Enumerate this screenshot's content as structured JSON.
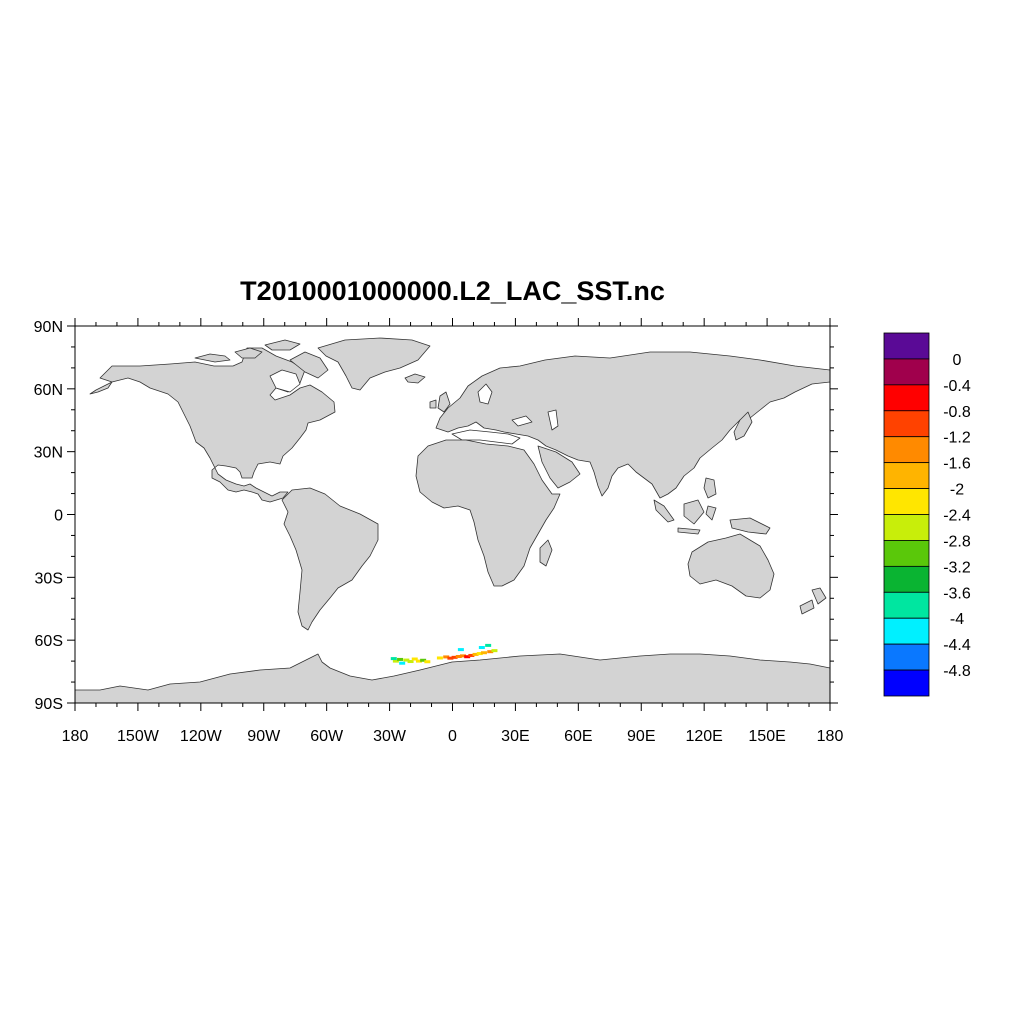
{
  "title": "T2010001000000.L2_LAC_SST.nc",
  "map": {
    "projection": "equirectangular",
    "lon_range": [
      -180,
      180
    ],
    "lat_range": [
      -90,
      90
    ],
    "land_color": "#d3d3d3",
    "coast_color": "#333333",
    "y_tick_labels": [
      {
        "lat": 90,
        "text": "90N"
      },
      {
        "lat": 60,
        "text": "60N"
      },
      {
        "lat": 30,
        "text": "30N"
      },
      {
        "lat": 0,
        "text": "0"
      },
      {
        "lat": -30,
        "text": "30S"
      },
      {
        "lat": -60,
        "text": "60S"
      },
      {
        "lat": -90,
        "text": "90S"
      }
    ],
    "x_tick_labels": [
      {
        "lon": -180,
        "text": "180"
      },
      {
        "lon": -150,
        "text": "150W"
      },
      {
        "lon": -120,
        "text": "120W"
      },
      {
        "lon": -90,
        "text": "90W"
      },
      {
        "lon": -60,
        "text": "60W"
      },
      {
        "lon": -30,
        "text": "30W"
      },
      {
        "lon": 0,
        "text": "0"
      },
      {
        "lon": 30,
        "text": "30E"
      },
      {
        "lon": 60,
        "text": "60E"
      },
      {
        "lon": 90,
        "text": "90E"
      },
      {
        "lon": 120,
        "text": "120E"
      },
      {
        "lon": 150,
        "text": "150E"
      },
      {
        "lon": 180,
        "text": "180"
      }
    ]
  },
  "colorbar": {
    "colors": [
      "#5a0a96",
      "#a0004c",
      "#ff0000",
      "#ff4200",
      "#ff8a00",
      "#ffb400",
      "#ffe600",
      "#c8ee0a",
      "#5ac80a",
      "#0ab432",
      "#00e6a0",
      "#00f0ff",
      "#0a78ff",
      "#0000ff"
    ],
    "labels": [
      "0",
      "-0.4",
      "-0.8",
      "-1.2",
      "-1.6",
      "-2",
      "-2.4",
      "-2.8",
      "-3.2",
      "-3.6",
      "-4",
      "-4.4",
      "-4.8"
    ]
  },
  "sst_swath": [
    {
      "lon": -27,
      "lat": -70.0,
      "value": -2.6
    },
    {
      "lon": -25,
      "lat": -69.2,
      "value": -2.9
    },
    {
      "lon": -22,
      "lat": -69.5,
      "value": -2.5
    },
    {
      "lon": -20,
      "lat": -70.2,
      "value": -2.8
    },
    {
      "lon": -18,
      "lat": -69.0,
      "value": -2.3
    },
    {
      "lon": -16,
      "lat": -70.0,
      "value": -2.1
    },
    {
      "lon": -14,
      "lat": -69.6,
      "value": -3.0
    },
    {
      "lon": -12,
      "lat": -70.3,
      "value": -2.4
    },
    {
      "lon": -24,
      "lat": -71.0,
      "value": -4.2
    },
    {
      "lon": -28,
      "lat": -68.8,
      "value": -3.9
    },
    {
      "lon": -6,
      "lat": -68.5,
      "value": -2.2
    },
    {
      "lon": -3,
      "lat": -68.0,
      "value": -1.4
    },
    {
      "lon": -1,
      "lat": -68.6,
      "value": -1.1
    },
    {
      "lon": 1,
      "lat": -68.2,
      "value": -0.9
    },
    {
      "lon": 3,
      "lat": -67.8,
      "value": -1.3
    },
    {
      "lon": 5,
      "lat": -67.5,
      "value": -1.6
    },
    {
      "lon": 7,
      "lat": -67.9,
      "value": -0.7
    },
    {
      "lon": 9,
      "lat": -67.3,
      "value": -1.2
    },
    {
      "lon": 11,
      "lat": -66.8,
      "value": -1.9
    },
    {
      "lon": 13,
      "lat": -66.4,
      "value": -2.3
    },
    {
      "lon": 15,
      "lat": -66.0,
      "value": -1.7
    },
    {
      "lon": 18,
      "lat": -65.5,
      "value": -1.5
    },
    {
      "lon": 20,
      "lat": -65.0,
      "value": -2.5
    },
    {
      "lon": 14,
      "lat": -63.5,
      "value": -4.1
    },
    {
      "lon": 4,
      "lat": -64.5,
      "value": -4.3
    },
    {
      "lon": 17,
      "lat": -62.5,
      "value": -4.0
    }
  ]
}
